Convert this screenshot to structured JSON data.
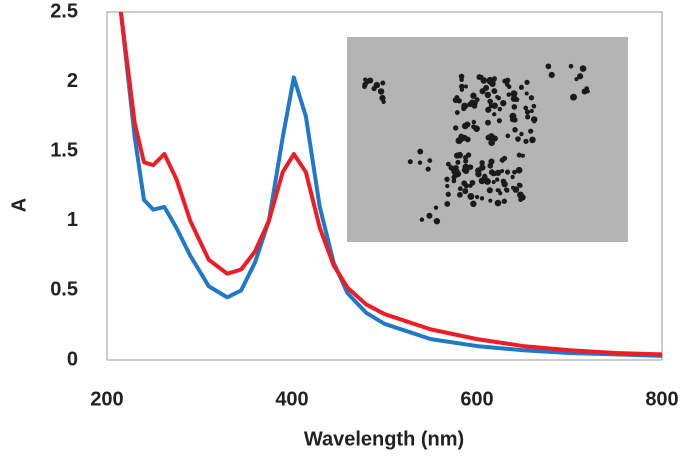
{
  "chart_data": {
    "type": "line",
    "x_label": "Wavelength (nm)",
    "y_label": "A",
    "x": [
      215,
      230,
      240,
      250,
      262,
      275,
      290,
      310,
      330,
      345,
      360,
      375,
      390,
      402,
      415,
      430,
      445,
      460,
      480,
      500,
      550,
      600,
      650,
      700,
      750,
      800
    ],
    "series": [
      {
        "color": "#1f78c8",
        "values": [
          2.5,
          1.6,
          1.15,
          1.08,
          1.1,
          0.95,
          0.75,
          0.53,
          0.45,
          0.5,
          0.7,
          1.0,
          1.6,
          2.03,
          1.75,
          1.1,
          0.7,
          0.48,
          0.34,
          0.26,
          0.15,
          0.1,
          0.07,
          0.05,
          0.04,
          0.03
        ]
      },
      {
        "color": "#ee1c25",
        "values": [
          2.5,
          1.7,
          1.42,
          1.4,
          1.48,
          1.3,
          1.0,
          0.72,
          0.62,
          0.65,
          0.78,
          1.0,
          1.35,
          1.48,
          1.35,
          0.95,
          0.68,
          0.52,
          0.4,
          0.33,
          0.22,
          0.15,
          0.1,
          0.07,
          0.05,
          0.04
        ]
      }
    ],
    "xlim": [
      200,
      800
    ],
    "xticks": [
      200,
      400,
      600,
      800
    ],
    "ylim": [
      0,
      2.5
    ],
    "yticks": [
      0,
      0.5,
      1,
      1.5,
      2,
      2.5
    ],
    "grid": false
  }
}
